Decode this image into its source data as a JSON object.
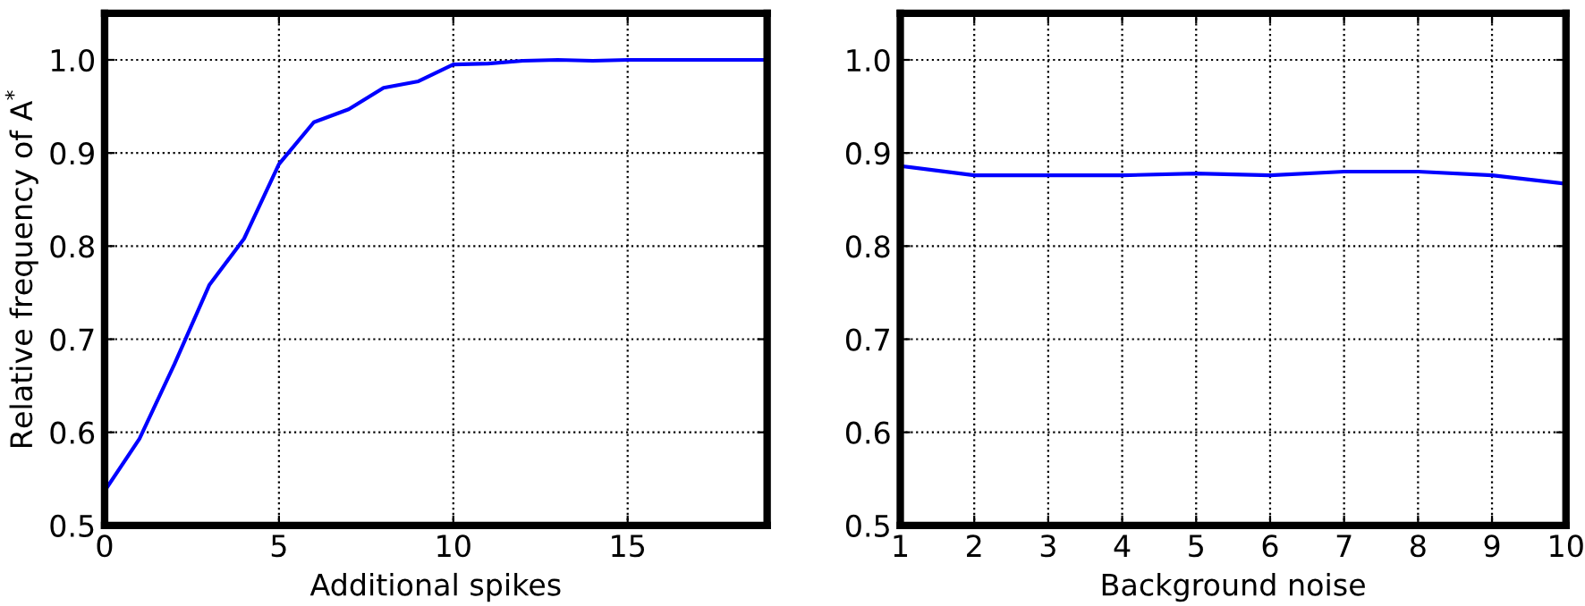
{
  "chart_data": [
    {
      "type": "line",
      "xlabel": "Additional spikes",
      "ylabel": "Relative frequency of A$^{*}$",
      "x": [
        0,
        1,
        2,
        3,
        4,
        5,
        6,
        7,
        8,
        9,
        10,
        11,
        12,
        13,
        14,
        15,
        16,
        17,
        18,
        19
      ],
      "series": [
        {
          "color": "#0000ff",
          "values": [
            0.537,
            0.593,
            0.673,
            0.758,
            0.808,
            0.888,
            0.933,
            0.947,
            0.97,
            0.977,
            0.995,
            0.996,
            0.999,
            1.0,
            0.999,
            1.0,
            1.0,
            1.0,
            1.0,
            1.0
          ]
        }
      ],
      "xlim": [
        0,
        19
      ],
      "xticks": [
        0,
        5,
        10,
        15
      ],
      "ylim": [
        0.5,
        1.05
      ],
      "yticks": [
        {
          "value": 0.5,
          "label": "0.5"
        },
        {
          "value": 0.6,
          "label": "0.6"
        },
        {
          "value": 0.7,
          "label": "0.7"
        },
        {
          "value": 0.8,
          "label": "0.8"
        },
        {
          "value": 0.9,
          "label": "0.9"
        },
        {
          "value": 1.0,
          "label": "1.0"
        }
      ],
      "grid": true,
      "line_style": "solid"
    },
    {
      "type": "line",
      "xlabel": "Background noise",
      "x": [
        1,
        2,
        3,
        4,
        5,
        6,
        7,
        8,
        9,
        10
      ],
      "series": [
        {
          "color": "#0000ff",
          "values": [
            0.886,
            0.876,
            0.876,
            0.876,
            0.878,
            0.876,
            0.88,
            0.88,
            0.876,
            0.867
          ]
        }
      ],
      "xlim": [
        1,
        10
      ],
      "xticks": [
        1,
        2,
        3,
        4,
        5,
        6,
        7,
        8,
        9,
        10
      ],
      "ylim": [
        0.5,
        1.05
      ],
      "yticks": [
        {
          "value": 0.5,
          "label": "0.5"
        },
        {
          "value": 0.6,
          "label": "0.6"
        },
        {
          "value": 0.7,
          "label": "0.7"
        },
        {
          "value": 0.8,
          "label": "0.8"
        },
        {
          "value": 0.9,
          "label": "0.9"
        },
        {
          "value": 1.0,
          "label": "1.0"
        }
      ],
      "grid": true,
      "line_style": "solid"
    }
  ]
}
